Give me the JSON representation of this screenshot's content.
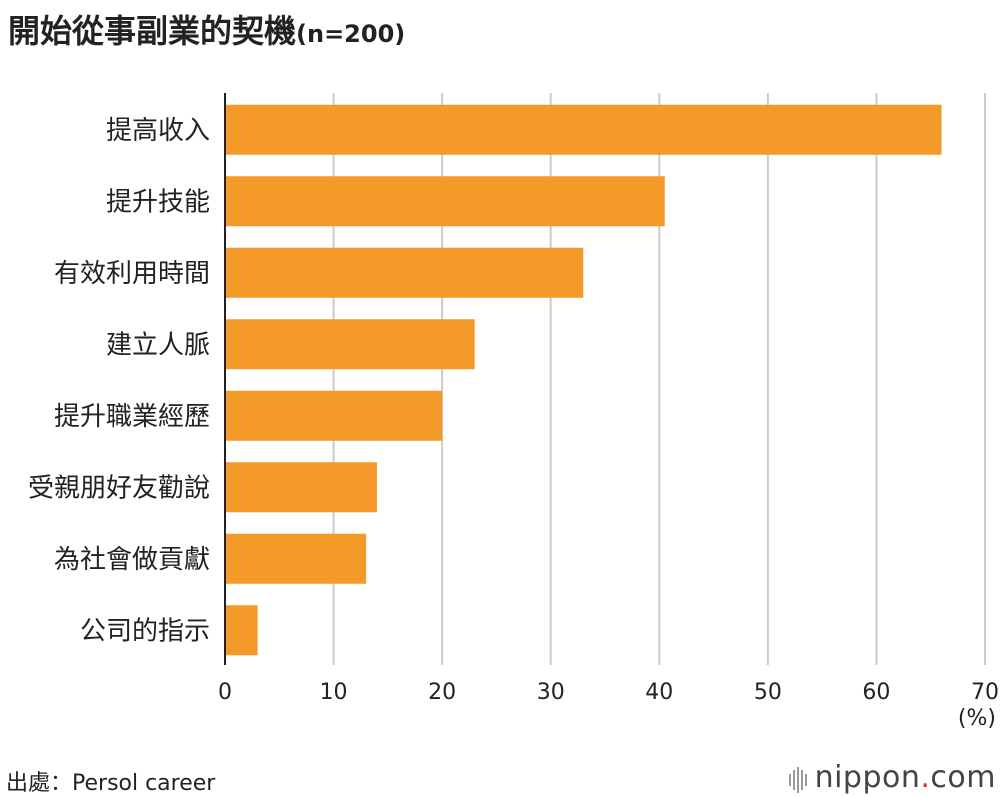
{
  "chart_data": {
    "type": "bar",
    "orientation": "horizontal",
    "title": "開始從事副業的契機",
    "subtitle": "(n=200)",
    "categories": [
      "提高收入",
      "提升技能",
      "有效利用時間",
      "建立人脈",
      "提升職業經歷",
      "受親朋好友勸說",
      "為社會做貢獻",
      "公司的指示"
    ],
    "values": [
      66,
      40.5,
      33,
      23,
      20,
      14,
      13,
      3
    ],
    "xlim": [
      0,
      70
    ],
    "xticks": [
      "0",
      "10",
      "20",
      "30",
      "40",
      "50",
      "60",
      "70"
    ],
    "xunit": "(%)",
    "grid": true,
    "bar_color": "#f39a28"
  },
  "source": "出處：Persol career",
  "brand": {
    "name": "nippon",
    "dot": ".",
    "suffix": "com"
  }
}
